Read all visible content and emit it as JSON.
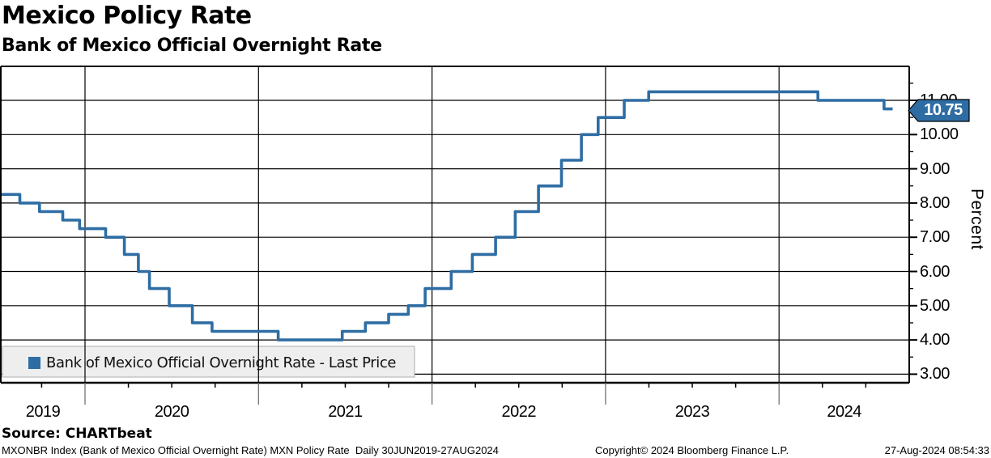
{
  "chart_data": {
    "type": "line",
    "subtype": "step",
    "title": "Mexico Policy Rate",
    "subtitle": "Bank of Mexico Official Overnight Rate",
    "ylabel": "Percent",
    "xlabel": "",
    "ylim": [
      2.75,
      12.0
    ],
    "grid": "on",
    "legend_position": "inside bottom-left",
    "y_major_ticks": [
      3,
      4,
      5,
      6,
      7,
      8,
      9,
      10,
      11
    ],
    "y_tick_labels": [
      "3.00",
      "4.00",
      "5.00",
      "6.00",
      "7.00",
      "8.00",
      "9.00",
      "10.00",
      "11.00"
    ],
    "x_year_labels": [
      "2019",
      "2020",
      "2021",
      "2022",
      "2023",
      "2024"
    ],
    "x_range_label": "30JUN2019-27AUG2024",
    "last_price": "10.75",
    "series": [
      {
        "name": "Bank of Mexico Official Overnight Rate - Last Price",
        "color": "#2E6DA4",
        "steps": [
          {
            "date": "2019-06-30",
            "value": 8.25
          },
          {
            "date": "2019-08-16",
            "value": 8.0
          },
          {
            "date": "2019-09-27",
            "value": 7.75
          },
          {
            "date": "2019-11-15",
            "value": 7.5
          },
          {
            "date": "2019-12-20",
            "value": 7.25
          },
          {
            "date": "2020-02-14",
            "value": 7.0
          },
          {
            "date": "2020-03-23",
            "value": 6.5
          },
          {
            "date": "2020-04-22",
            "value": 6.0
          },
          {
            "date": "2020-05-15",
            "value": 5.5
          },
          {
            "date": "2020-06-26",
            "value": 5.0
          },
          {
            "date": "2020-08-14",
            "value": 4.5
          },
          {
            "date": "2020-09-25",
            "value": 4.25
          },
          {
            "date": "2021-02-12",
            "value": 4.0
          },
          {
            "date": "2021-06-25",
            "value": 4.25
          },
          {
            "date": "2021-08-13",
            "value": 4.5
          },
          {
            "date": "2021-10-01",
            "value": 4.75
          },
          {
            "date": "2021-11-12",
            "value": 5.0
          },
          {
            "date": "2021-12-17",
            "value": 5.5
          },
          {
            "date": "2022-02-11",
            "value": 6.0
          },
          {
            "date": "2022-03-25",
            "value": 6.5
          },
          {
            "date": "2022-05-13",
            "value": 7.0
          },
          {
            "date": "2022-06-24",
            "value": 7.75
          },
          {
            "date": "2022-08-12",
            "value": 8.5
          },
          {
            "date": "2022-09-30",
            "value": 9.25
          },
          {
            "date": "2022-11-11",
            "value": 10.0
          },
          {
            "date": "2022-12-16",
            "value": 10.5
          },
          {
            "date": "2023-02-10",
            "value": 11.0
          },
          {
            "date": "2023-03-31",
            "value": 11.25
          },
          {
            "date": "2024-03-22",
            "value": 11.0
          },
          {
            "date": "2024-08-09",
            "value": 10.75
          },
          {
            "date": "2024-08-27",
            "value": 10.75
          }
        ]
      }
    ]
  },
  "legend": {
    "label": "Bank of Mexico Official Overnight Rate - Last Price",
    "swatch_color": "#2E6DA4",
    "background": "#EEEEEE"
  },
  "axis": {
    "percent_label": "Percent",
    "last_price_flag": "10.75"
  },
  "colors": {
    "line": "#2E6DA4",
    "flag_fill": "#2E6DA4",
    "flag_text": "#FFFFFF",
    "grid": "#000000",
    "legend_bg": "#EEEEEE"
  },
  "footer": {
    "source": "Source: CHARTbeat",
    "description": "MXONBR Index (Bank of Mexico Official Overnight Rate) MXN Policy Rate  Daily 30JUN2019-27AUG2024",
    "copyright": "Copyright© 2024 Bloomberg Finance L.P.",
    "timestamp": "27-Aug-2024 08:54:33"
  }
}
